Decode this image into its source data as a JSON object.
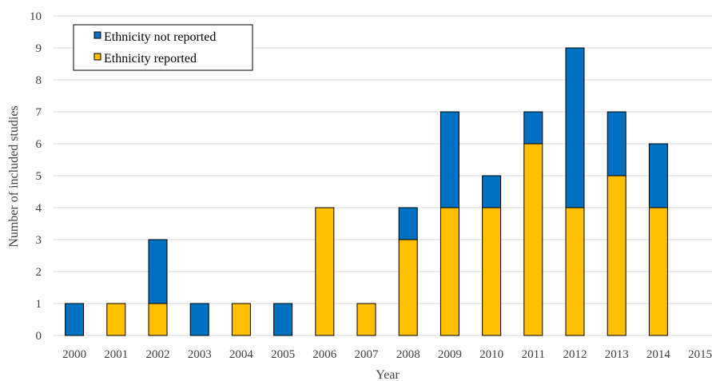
{
  "chart_data": {
    "type": "bar",
    "stacked": true,
    "categories": [
      "2000",
      "2001",
      "2002",
      "2003",
      "2004",
      "2005",
      "2006",
      "2007",
      "2008",
      "2009",
      "2010",
      "2011",
      "2012",
      "2013",
      "2014",
      "2015"
    ],
    "series": [
      {
        "name": "Ethnicity reported",
        "color": "#FFC000",
        "values": [
          0,
          1,
          1,
          0,
          1,
          0,
          4,
          1,
          3,
          4,
          4,
          6,
          4,
          5,
          4,
          0
        ]
      },
      {
        "name": "Ethnicity not reported",
        "color": "#0070C0",
        "values": [
          1,
          0,
          2,
          1,
          0,
          1,
          0,
          0,
          1,
          3,
          1,
          1,
          5,
          2,
          2,
          0
        ]
      }
    ],
    "legend_order": [
      "Ethnicity not reported",
      "Ethnicity reported"
    ],
    "xlabel": "Year",
    "ylabel": "Number of included studies",
    "ylim": [
      0,
      10
    ],
    "yticks": [
      0,
      1,
      2,
      3,
      4,
      5,
      6,
      7,
      8,
      9,
      10
    ],
    "grid": true,
    "legend_position": "top-left"
  }
}
